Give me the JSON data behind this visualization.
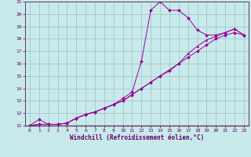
{
  "xlabel": "Windchill (Refroidissement éolien,°C)",
  "bg_color": "#c8eaea",
  "line_color": "#990099",
  "grid_color": "#9fbfbf",
  "axis_line_color": "#663366",
  "tick_color": "#660066",
  "xlim": [
    -0.5,
    23.5
  ],
  "ylim": [
    11,
    21
  ],
  "xticks": [
    0,
    1,
    2,
    3,
    4,
    5,
    6,
    7,
    8,
    9,
    10,
    11,
    12,
    13,
    14,
    15,
    16,
    17,
    18,
    19,
    20,
    21,
    22,
    23
  ],
  "yticks": [
    11,
    12,
    13,
    14,
    15,
    16,
    17,
    18,
    19,
    20,
    21
  ],
  "line1_x": [
    0,
    1,
    2,
    3,
    4,
    5,
    6,
    7,
    8,
    9,
    10,
    11,
    12,
    13,
    14,
    15,
    16,
    17,
    18,
    19,
    20,
    21,
    22,
    23
  ],
  "line1_y": [
    11.0,
    11.5,
    11.1,
    11.1,
    11.2,
    11.6,
    11.9,
    12.1,
    12.4,
    12.7,
    13.0,
    13.5,
    14.0,
    14.5,
    15.0,
    15.4,
    16.0,
    16.5,
    17.0,
    17.5,
    18.0,
    18.3,
    18.5,
    18.3
  ],
  "line2_x": [
    0,
    1,
    2,
    3,
    4,
    5,
    6,
    7,
    8,
    9,
    10,
    11,
    12,
    13,
    14,
    15,
    16,
    17,
    18,
    19,
    20,
    21,
    22,
    23
  ],
  "line2_y": [
    11.0,
    11.1,
    11.1,
    11.1,
    11.2,
    11.6,
    11.9,
    12.1,
    12.4,
    12.7,
    13.2,
    13.7,
    16.2,
    20.3,
    21.0,
    20.3,
    20.3,
    19.7,
    18.7,
    18.3,
    18.3,
    18.5,
    18.8,
    18.3
  ],
  "line3_x": [
    0,
    1,
    2,
    3,
    4,
    5,
    6,
    7,
    8,
    9,
    10,
    11,
    12,
    13,
    14,
    15,
    16,
    17,
    18,
    19,
    20,
    21,
    22,
    23
  ],
  "line3_y": [
    11.0,
    11.1,
    11.1,
    11.1,
    11.2,
    11.6,
    11.9,
    12.1,
    12.4,
    12.7,
    13.0,
    13.5,
    14.0,
    14.5,
    15.0,
    15.5,
    16.0,
    16.8,
    17.4,
    17.9,
    18.2,
    18.5,
    18.8,
    18.3
  ]
}
